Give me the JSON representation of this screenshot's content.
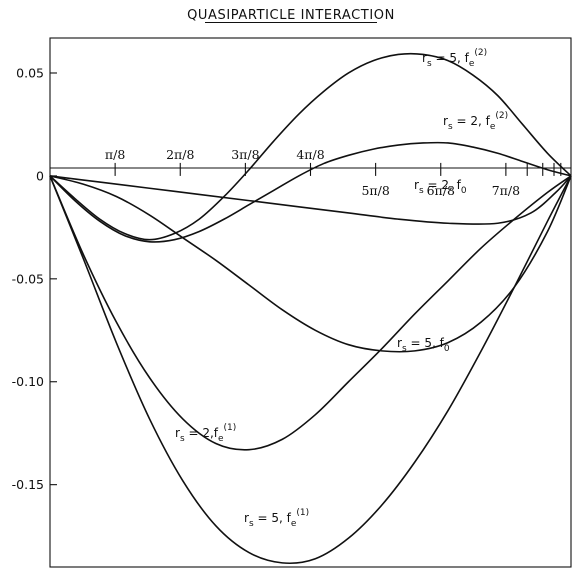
{
  "chart_data": {
    "type": "line",
    "title": "QUASIPARTICLE INTERACTION",
    "xlim": [
      0,
      3.14159
    ],
    "ylim": [
      -0.19,
      0.067
    ],
    "grid": false,
    "y_ticks": [
      {
        "value": 0.05,
        "label": "0.05"
      },
      {
        "value": 0,
        "label": "0"
      },
      {
        "value": -0.05,
        "label": "-0.05"
      },
      {
        "value": -0.1,
        "label": "-0.10"
      },
      {
        "value": -0.15,
        "label": "-0.15"
      }
    ],
    "x_ticks": [
      {
        "value": 0.3927,
        "label": "π/8",
        "pos": "above"
      },
      {
        "value": 0.7854,
        "label": "2π/8",
        "pos": "above"
      },
      {
        "value": 1.1781,
        "label": "3π/8",
        "pos": "above"
      },
      {
        "value": 1.5708,
        "label": "4π/8",
        "pos": "above"
      },
      {
        "value": 1.9635,
        "label": "5π/8",
        "pos": "below"
      },
      {
        "value": 2.3562,
        "label": "6π/8",
        "pos": "below"
      },
      {
        "value": 2.7489,
        "label": "7π/8",
        "pos": "below"
      }
    ],
    "x_minor_ticks": [
      2.8776,
      2.9712,
      3.0391,
      3.0801
    ],
    "series": [
      {
        "name": "r_s=5, f_e^(2)",
        "label": {
          "main": "r",
          "sub": "s",
          "eq": " = 5, f",
          "sub2": "e",
          "sup": "(2)"
        },
        "x": [
          0,
          0.15,
          0.3,
          0.45,
          0.6,
          0.75,
          0.9,
          1.05,
          1.2,
          1.35,
          1.5,
          1.65,
          1.8,
          1.95,
          2.1,
          2.25,
          2.4,
          2.55,
          2.7,
          2.85,
          3.0,
          3.14159
        ],
        "y": [
          0,
          -0.011,
          -0.021,
          -0.028,
          -0.031,
          -0.028,
          -0.021,
          -0.01,
          0.003,
          0.017,
          0.03,
          0.041,
          0.05,
          0.056,
          0.059,
          0.059,
          0.056,
          0.049,
          0.039,
          0.025,
          0.011,
          0
        ]
      },
      {
        "name": "r_s=2, f_e^(2)",
        "label": {
          "main": "r",
          "sub": "s",
          "eq": " = 2, f",
          "sub2": "e",
          "sup": "(2)"
        },
        "x": [
          0,
          0.15,
          0.3,
          0.45,
          0.6,
          0.75,
          0.9,
          1.05,
          1.2,
          1.35,
          1.5,
          1.65,
          1.8,
          1.95,
          2.1,
          2.25,
          2.4,
          2.55,
          2.7,
          2.85,
          3.0,
          3.14159
        ],
        "y": [
          0,
          -0.012,
          -0.022,
          -0.029,
          -0.032,
          -0.031,
          -0.027,
          -0.021,
          -0.014,
          -0.007,
          0.0,
          0.006,
          0.01,
          0.013,
          0.015,
          0.016,
          0.016,
          0.014,
          0.011,
          0.007,
          0.003,
          0
        ]
      },
      {
        "name": "r_s=2, f_0",
        "label": {
          "main": "r",
          "sub": "s",
          "eq": " = 2, f",
          "sub2": "0",
          "sup": ""
        },
        "x": [
          0,
          0.3,
          0.6,
          0.9,
          1.2,
          1.5,
          1.8,
          2.1,
          2.4,
          2.7,
          2.9,
          3.05,
          3.14159
        ],
        "y": [
          0,
          -0.003,
          -0.006,
          -0.009,
          -0.012,
          -0.015,
          -0.018,
          -0.021,
          -0.023,
          -0.023,
          -0.018,
          -0.008,
          0
        ]
      },
      {
        "name": "r_s=5, f_0",
        "label": {
          "main": "r",
          "sub": "s",
          "eq": " = 5, f",
          "sub2": "0",
          "sup": ""
        },
        "x": [
          0,
          0.2,
          0.4,
          0.6,
          0.8,
          1.0,
          1.2,
          1.4,
          1.6,
          1.8,
          2.0,
          2.2,
          2.4,
          2.6,
          2.8,
          3.0,
          3.14159
        ],
        "y": [
          0,
          -0.004,
          -0.01,
          -0.019,
          -0.03,
          -0.041,
          -0.053,
          -0.065,
          -0.075,
          -0.082,
          -0.085,
          -0.085,
          -0.081,
          -0.071,
          -0.054,
          -0.027,
          0
        ]
      },
      {
        "name": "r_s=2, f_e^(1)",
        "label": {
          "main": "r",
          "sub": "s",
          "eq": " = 2,f",
          "sub2": "e",
          "sup": "(1)"
        },
        "x": [
          0,
          0.2,
          0.4,
          0.6,
          0.8,
          1.0,
          1.2,
          1.4,
          1.6,
          1.8,
          2.0,
          2.2,
          2.4,
          2.6,
          2.8,
          3.0,
          3.14159
        ],
        "y": [
          0,
          -0.038,
          -0.071,
          -0.098,
          -0.118,
          -0.13,
          -0.133,
          -0.128,
          -0.116,
          -0.1,
          -0.084,
          -0.067,
          -0.051,
          -0.035,
          -0.021,
          -0.008,
          0
        ]
      },
      {
        "name": "r_s=5, f_e^(1)",
        "label": {
          "main": "r",
          "sub": "s",
          "eq": " = 5, f",
          "sub2": "e",
          "sup": "(1)"
        },
        "x": [
          0,
          0.2,
          0.4,
          0.6,
          0.8,
          1.0,
          1.2,
          1.4,
          1.6,
          1.8,
          2.0,
          2.2,
          2.4,
          2.6,
          2.8,
          3.0,
          3.14159
        ],
        "y": [
          0,
          -0.04,
          -0.081,
          -0.118,
          -0.148,
          -0.17,
          -0.183,
          -0.188,
          -0.186,
          -0.176,
          -0.16,
          -0.139,
          -0.114,
          -0.085,
          -0.054,
          -0.022,
          0
        ]
      }
    ]
  }
}
